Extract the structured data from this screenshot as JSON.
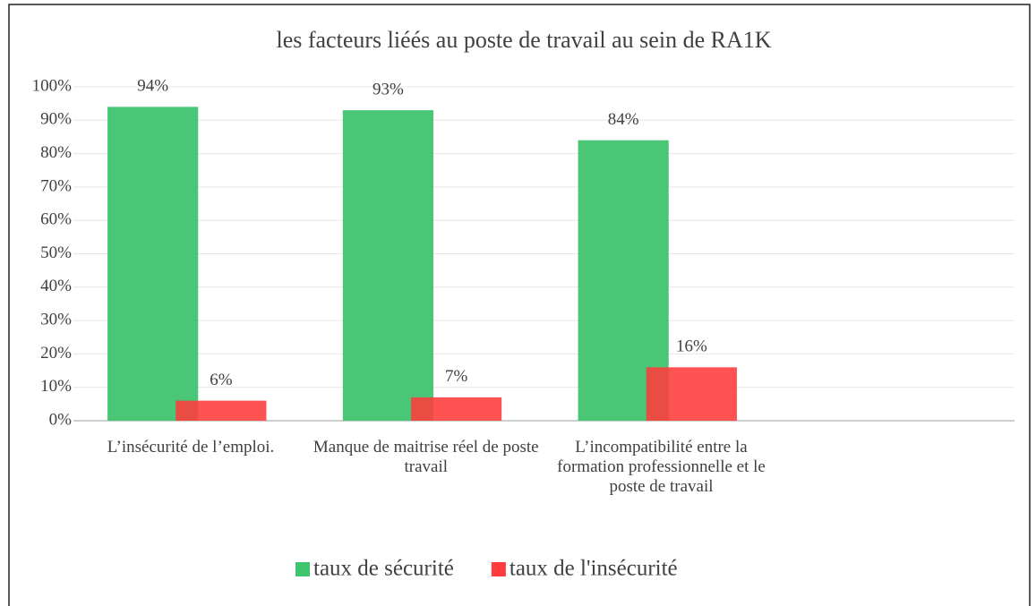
{
  "chart_data": {
    "type": "bar",
    "title": "les facteurs liéés au poste de travail au sein de RA1K",
    "categories": [
      "L’insécurité de l’emploi.",
      "Manque de maitrise réel de poste travail",
      "L’incompatibilité entre la formation professionnelle et le poste de travail",
      null
    ],
    "series": [
      {
        "name": "taux de sécurité",
        "color": "#3fc46f",
        "values": [
          94,
          93,
          84,
          null
        ],
        "value_labels": [
          "94%",
          "93%",
          "84%",
          null
        ]
      },
      {
        "name": "taux de l'insécurité",
        "color": "#ff3b3b",
        "values": [
          6,
          7,
          16,
          null
        ],
        "value_labels": [
          "6%",
          "7%",
          "16%",
          null
        ]
      }
    ],
    "ylim": [
      0,
      100
    ],
    "yticks": [
      {
        "value": 0,
        "label": "0%"
      },
      {
        "value": 10,
        "label": "10%"
      },
      {
        "value": 20,
        "label": "20%"
      },
      {
        "value": 30,
        "label": "30%"
      },
      {
        "value": 40,
        "label": "40%"
      },
      {
        "value": 50,
        "label": "50%"
      },
      {
        "value": 60,
        "label": "60%"
      },
      {
        "value": 70,
        "label": "70%"
      },
      {
        "value": 80,
        "label": "80%"
      },
      {
        "value": 90,
        "label": "90%"
      },
      {
        "value": 100,
        "label": "100%"
      }
    ],
    "grid": true,
    "legend": "bottom"
  }
}
